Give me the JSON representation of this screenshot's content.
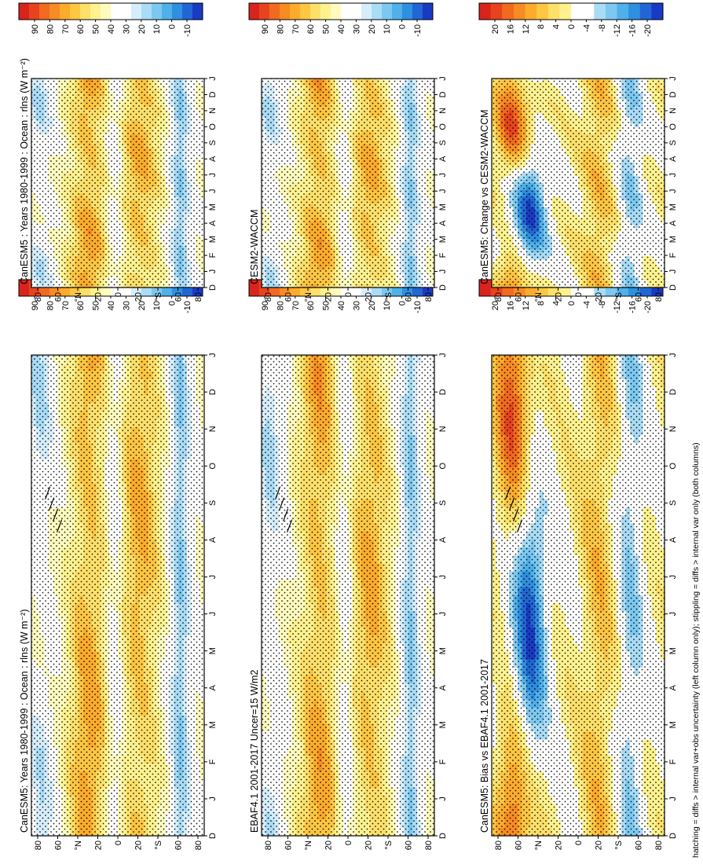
{
  "footnote": "hatching = diffs > internal var+obs uncertainty (left column only); stippling = diffs > internal var only (both columns)",
  "colors": {
    "absolute": [
      "#d9231d",
      "#e8431f",
      "#f16a20",
      "#f78b24",
      "#fcab2c",
      "#fdc643",
      "#fde06a",
      "#fef28f",
      "#fffbbf",
      "#ffffff",
      "#ffffff",
      "#d6eefb",
      "#a9dcf6",
      "#7cc8f0",
      "#4fb0ea",
      "#2f8fe0",
      "#2166d4",
      "#1a3ac4"
    ],
    "difference": [
      "#d9231d",
      "#e8431f",
      "#f16a20",
      "#f78b24",
      "#fcab2c",
      "#fdc643",
      "#fde06a",
      "#fef28f",
      "#ffffff",
      "#ffffff",
      "#a9dcf6",
      "#7cc8f0",
      "#4fb0ea",
      "#2f8fe0",
      "#2166d4",
      "#1a3ac4"
    ]
  },
  "chart_data": [
    {
      "panel": "left-top",
      "type": "heatmap",
      "title": "CanESM5: Years 1980-1999 : Ocean : rlns (W m⁻²)",
      "months": [
        "D",
        "J",
        "F",
        "M",
        "A",
        "M",
        "J",
        "J",
        "A",
        "S",
        "O",
        "N",
        "D",
        "J"
      ],
      "lat_ticks": [
        "80",
        "60",
        "°N",
        "20",
        "0",
        "20",
        "°S",
        "60",
        "80"
      ],
      "colorbar": [
        "90",
        "80",
        "70",
        "60",
        "50",
        "40",
        "30",
        "20",
        "10",
        "0",
        "-10"
      ],
      "scale": "absolute",
      "hatching": true
    },
    {
      "panel": "right-top",
      "type": "heatmap",
      "title": "CanESM5 : Years 1980-1999 : Ocean : rlns (W m⁻²)",
      "months": [
        "D",
        "J",
        "F",
        "M",
        "A",
        "M",
        "J",
        "J",
        "A",
        "S",
        "O",
        "N",
        "D",
        "J"
      ],
      "lat_ticks": [
        "80",
        "60",
        "°N",
        "20",
        "0",
        "20",
        "°S",
        "60",
        "80"
      ],
      "colorbar": [
        "90",
        "80",
        "70",
        "60",
        "50",
        "40",
        "30",
        "20",
        "10",
        "0",
        "-10"
      ],
      "scale": "absolute",
      "hatching": false
    },
    {
      "panel": "left-middle",
      "type": "heatmap",
      "title": "EBAF4.1 2001-2017 Uncer=15 W/m2",
      "months": [
        "D",
        "J",
        "F",
        "M",
        "A",
        "M",
        "J",
        "J",
        "A",
        "S",
        "O",
        "N",
        "D",
        "J"
      ],
      "lat_ticks": [
        "80",
        "60",
        "°N",
        "20",
        "0",
        "20",
        "°S",
        "60",
        "80"
      ],
      "colorbar": [
        "90",
        "80",
        "70",
        "60",
        "50",
        "40",
        "30",
        "20",
        "10",
        "0",
        "-10"
      ],
      "scale": "absolute",
      "hatching": true
    },
    {
      "panel": "right-middle",
      "type": "heatmap",
      "title": "CESM2-WACCM",
      "months": [
        "D",
        "J",
        "F",
        "M",
        "A",
        "M",
        "J",
        "J",
        "A",
        "S",
        "O",
        "N",
        "D",
        "J"
      ],
      "lat_ticks": [
        "80",
        "60",
        "°N",
        "20",
        "0",
        "20",
        "°S",
        "60",
        "80"
      ],
      "colorbar": [
        "90",
        "80",
        "70",
        "60",
        "50",
        "40",
        "30",
        "20",
        "10",
        "0",
        "-10"
      ],
      "scale": "absolute",
      "hatching": false
    },
    {
      "panel": "left-bottom",
      "type": "heatmap",
      "title": "CanESM5: Bias vs EBAF4.1 2001-2017",
      "months": [
        "D",
        "J",
        "F",
        "M",
        "A",
        "M",
        "J",
        "J",
        "A",
        "S",
        "O",
        "N",
        "D",
        "J"
      ],
      "lat_ticks": [
        "80",
        "60",
        "°N",
        "20",
        "0",
        "20",
        "°S",
        "60",
        "80"
      ],
      "colorbar": [
        "20",
        "16",
        "12",
        "8",
        "4",
        "0",
        "-4",
        "-8",
        "-12",
        "-16",
        "-20"
      ],
      "scale": "difference",
      "hatching": true
    },
    {
      "panel": "right-bottom",
      "type": "heatmap",
      "title": "CanESM5: Change vs CESM2-WACCM",
      "months": [
        "D",
        "J",
        "F",
        "M",
        "A",
        "M",
        "J",
        "J",
        "A",
        "S",
        "O",
        "N",
        "D",
        "J"
      ],
      "lat_ticks": [
        "80",
        "60",
        "°N",
        "20",
        "0",
        "20",
        "°S",
        "60",
        "80"
      ],
      "colorbar": [
        "20",
        "16",
        "12",
        "8",
        "4",
        "0",
        "-4",
        "-8",
        "-12",
        "-16",
        "-20"
      ],
      "scale": "difference",
      "hatching": false
    }
  ]
}
